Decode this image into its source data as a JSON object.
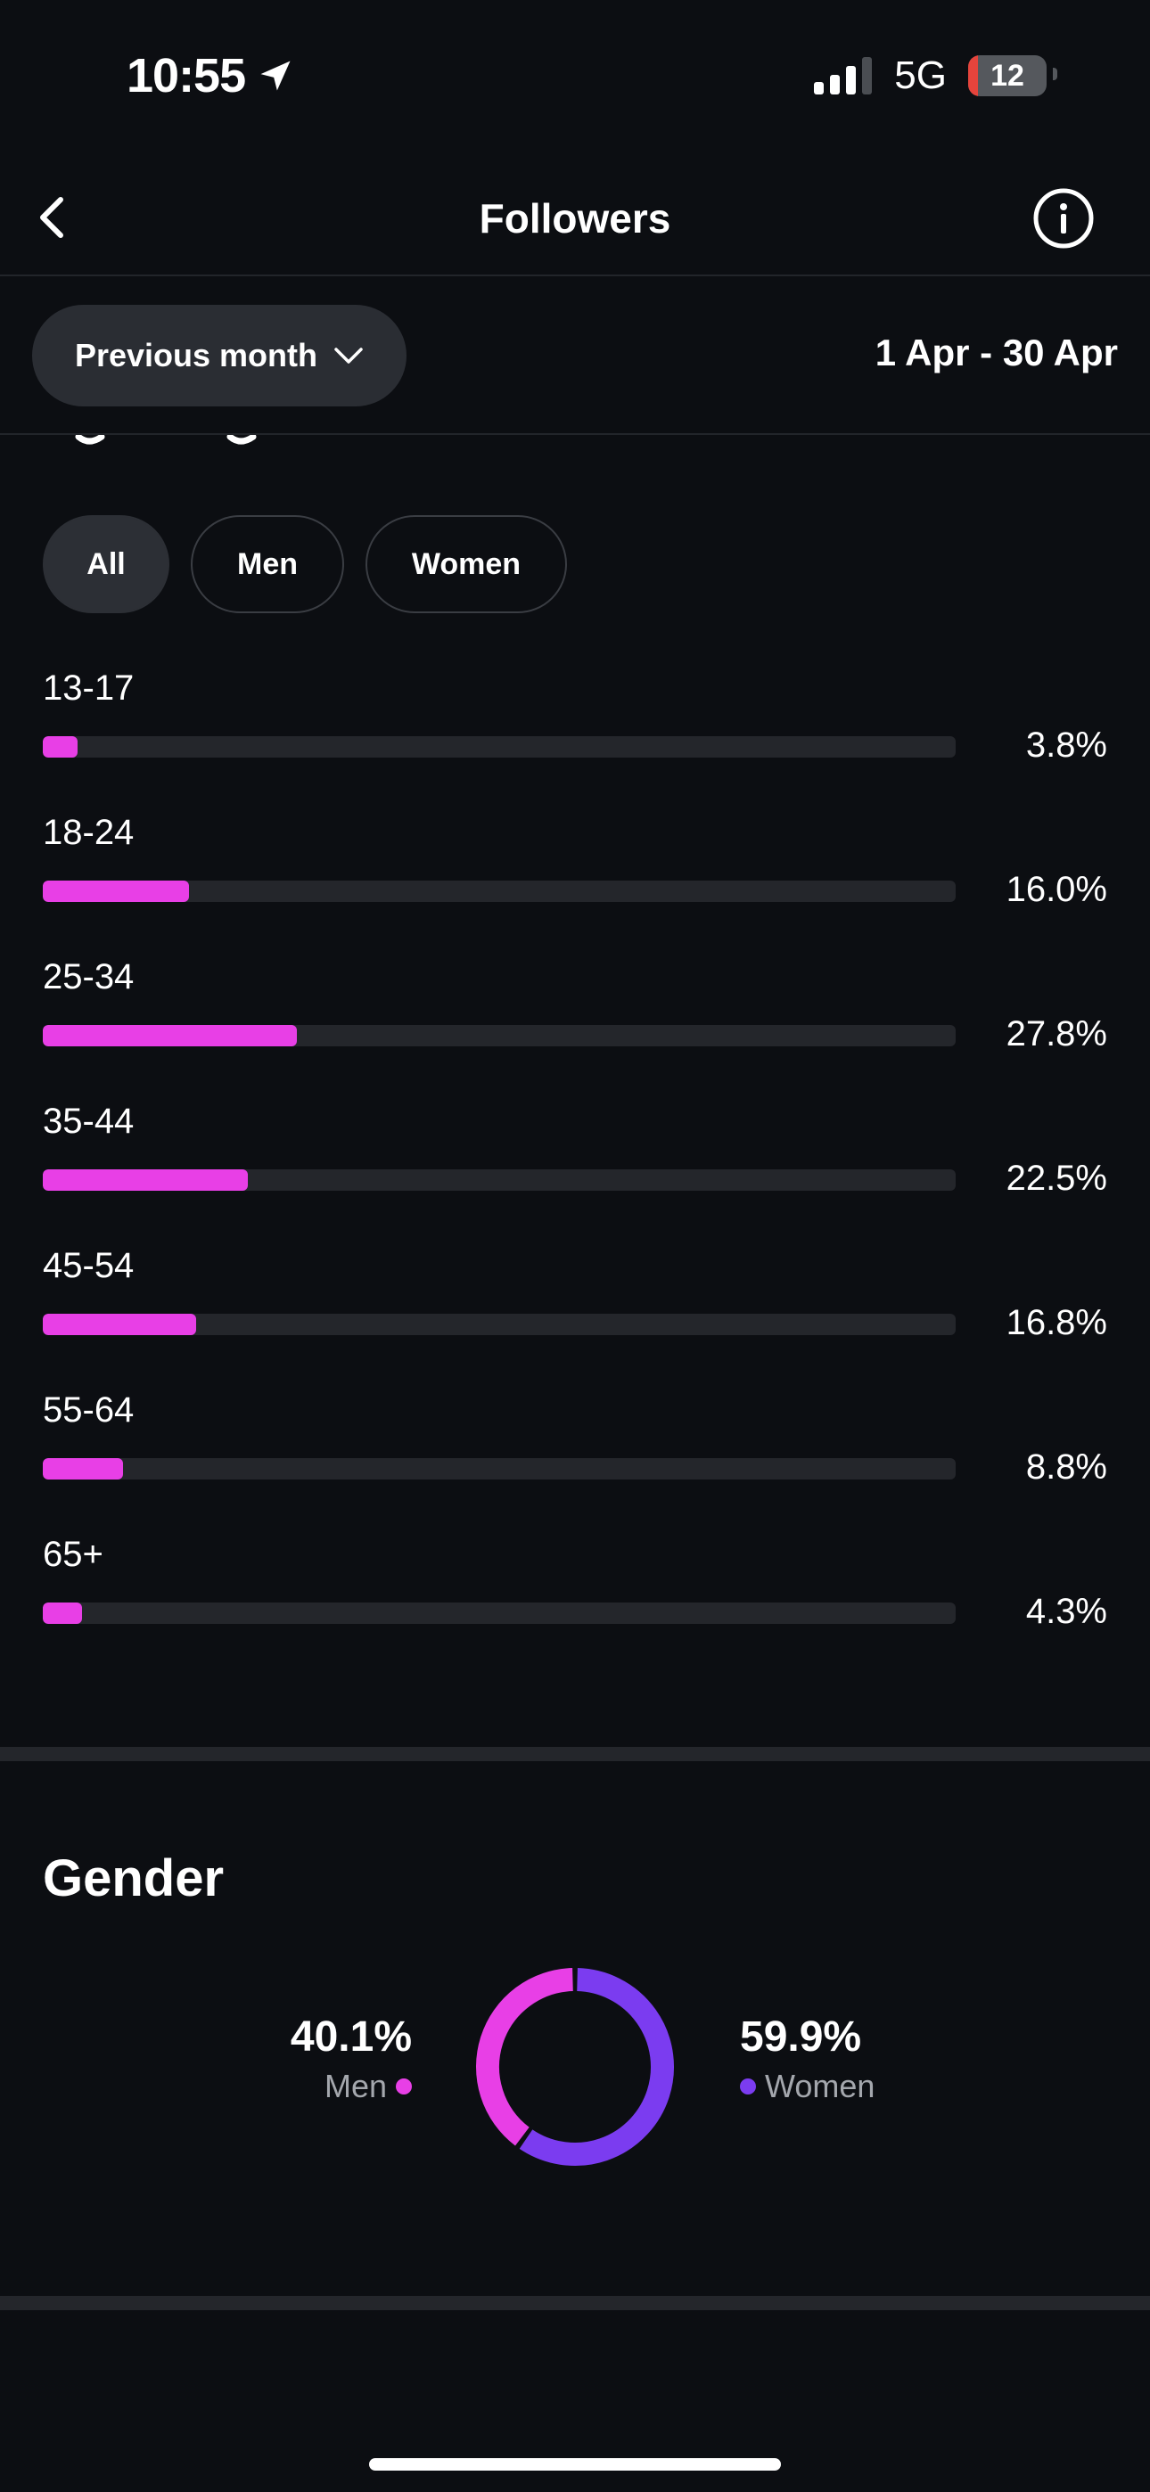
{
  "status_bar": {
    "time": "10:55",
    "network": "5G",
    "battery": "12",
    "battery_level": 0.12
  },
  "header": {
    "title": "Followers"
  },
  "filter": {
    "period_label": "Previous month",
    "date_range": "1 Apr - 30 Apr"
  },
  "age_section": {
    "chips": [
      {
        "label": "All",
        "selected": true
      },
      {
        "label": "Men",
        "selected": false
      },
      {
        "label": "Women",
        "selected": false
      }
    ],
    "rows": [
      {
        "label": "13-17",
        "value_text": "3.8%",
        "fill": 0.038
      },
      {
        "label": "18-24",
        "value_text": "16.0%",
        "fill": 0.16
      },
      {
        "label": "25-34",
        "value_text": "27.8%",
        "fill": 0.278
      },
      {
        "label": "35-44",
        "value_text": "22.5%",
        "fill": 0.225
      },
      {
        "label": "45-54",
        "value_text": "16.8%",
        "fill": 0.168
      },
      {
        "label": "55-64",
        "value_text": "8.8%",
        "fill": 0.088
      },
      {
        "label": "65+",
        "value_text": "4.3%",
        "fill": 0.043
      }
    ],
    "bar_color": "#e83fe6"
  },
  "gender_section": {
    "title": "Gender",
    "men": {
      "pct": "40.1%",
      "label": "Men",
      "value": 40.1,
      "color": "#e83fe6"
    },
    "women": {
      "pct": "59.9%",
      "label": "Women",
      "value": 59.9,
      "color": "#7b3cf0"
    }
  }
}
